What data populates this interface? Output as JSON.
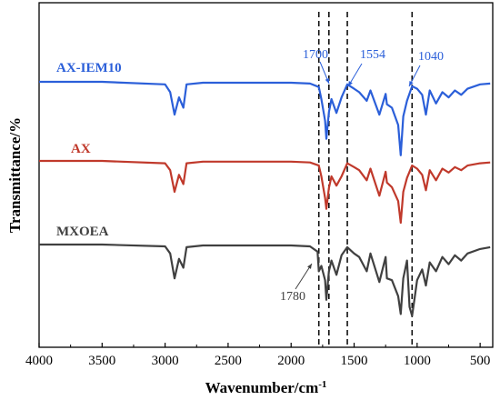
{
  "chart_data": {
    "type": "line",
    "xlabel": "Wavenumber/cm",
    "xlabel_superscript": "-1",
    "ylabel": "Transmittance/%",
    "x_reversed": true,
    "xlim": [
      4000,
      400
    ],
    "x_ticks": [
      4000,
      3500,
      3000,
      2500,
      2000,
      1500,
      1000,
      500
    ],
    "y_ticks_shown": false,
    "grid": false,
    "series": [
      {
        "name": "AX-IEM10",
        "color": "#2b5fd9",
        "x": [
          4000,
          3500,
          3000,
          2960,
          2925,
          2890,
          2855,
          2830,
          2700,
          2500,
          2000,
          1850,
          1780,
          1760,
          1730,
          1720,
          1700,
          1680,
          1640,
          1600,
          1554,
          1500,
          1460,
          1400,
          1370,
          1300,
          1250,
          1240,
          1200,
          1150,
          1130,
          1110,
          1080,
          1040,
          1000,
          960,
          930,
          900,
          850,
          800,
          750,
          700,
          650,
          600,
          500,
          420
        ],
        "y": [
          0,
          0,
          3,
          12,
          38,
          18,
          30,
          3,
          1,
          1,
          1,
          2,
          6,
          20,
          45,
          66,
          35,
          20,
          36,
          18,
          3,
          8,
          12,
          22,
          10,
          38,
          14,
          26,
          30,
          50,
          85,
          40,
          22,
          5,
          8,
          15,
          38,
          10,
          25,
          12,
          18,
          10,
          15,
          8,
          3,
          2
        ]
      },
      {
        "name": "AX",
        "color": "#c0392b",
        "x": [
          4000,
          3500,
          3000,
          2960,
          2925,
          2890,
          2855,
          2830,
          2700,
          2500,
          2000,
          1850,
          1780,
          1760,
          1730,
          1720,
          1700,
          1680,
          1640,
          1600,
          1554,
          1500,
          1460,
          1400,
          1370,
          1300,
          1250,
          1240,
          1200,
          1150,
          1130,
          1110,
          1080,
          1040,
          1000,
          960,
          930,
          900,
          850,
          800,
          750,
          700,
          650,
          600,
          500,
          420
        ],
        "y": [
          0,
          0,
          3,
          12,
          40,
          18,
          30,
          3,
          1,
          1,
          1,
          2,
          6,
          20,
          48,
          62,
          35,
          20,
          32,
          20,
          3,
          8,
          12,
          25,
          10,
          45,
          14,
          28,
          34,
          52,
          80,
          40,
          22,
          6,
          10,
          18,
          38,
          12,
          25,
          10,
          15,
          8,
          12,
          6,
          3,
          2
        ]
      },
      {
        "name": "MXOEA",
        "color": "#404040",
        "x": [
          4000,
          3500,
          3000,
          2960,
          2925,
          2890,
          2855,
          2830,
          2700,
          2500,
          2000,
          1850,
          1790,
          1780,
          1760,
          1730,
          1720,
          1700,
          1680,
          1640,
          1600,
          1554,
          1500,
          1460,
          1400,
          1370,
          1300,
          1250,
          1240,
          1200,
          1150,
          1130,
          1110,
          1080,
          1060,
          1040,
          1020,
          1000,
          960,
          930,
          900,
          850,
          800,
          750,
          700,
          650,
          600,
          500,
          420
        ],
        "y": [
          0,
          0,
          2,
          10,
          38,
          16,
          26,
          3,
          1,
          1,
          1,
          2,
          8,
          30,
          24,
          40,
          62,
          30,
          18,
          34,
          12,
          3,
          10,
          14,
          30,
          10,
          42,
          14,
          38,
          40,
          58,
          78,
          38,
          18,
          70,
          80,
          60,
          40,
          28,
          46,
          20,
          30,
          14,
          22,
          12,
          18,
          10,
          5,
          3
        ]
      }
    ],
    "annotations": [
      {
        "text": "1700",
        "x": 1700,
        "color": "#2b5fd9"
      },
      {
        "text": "1554",
        "x": 1554,
        "color": "#2b5fd9"
      },
      {
        "text": "1040",
        "x": 1040,
        "color": "#2b5fd9"
      },
      {
        "text": "1780",
        "x": 1780,
        "color": "#404040"
      }
    ],
    "reference_lines_x": [
      1780,
      1700,
      1554,
      1040
    ]
  }
}
